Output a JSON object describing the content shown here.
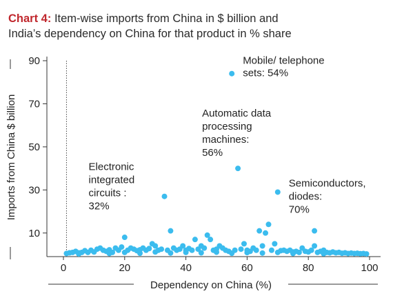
{
  "title_lead": "Chart 4:",
  "title_line1": "Item-wise imports from China in $ billion and",
  "title_line2": "India’s dependency on China for that product in % share",
  "colors": {
    "point": "#3bbcee",
    "title_lead": "#c0272d",
    "axis": "#333333"
  },
  "chart_data": {
    "type": "scatter",
    "title": "Item-wise imports from China in $ billion and India’s dependency on China for that product in % share",
    "xlabel": "Dependency on China (%)",
    "ylabel": "Imports from China $ billion",
    "xlim": [
      0,
      100
    ],
    "ylim": [
      0,
      90
    ],
    "x_ticks": [
      "0",
      "20",
      "40",
      "60",
      "80",
      "100"
    ],
    "y_ticks": [
      "10",
      "30",
      "50",
      "70",
      "90"
    ],
    "reference_line_x": 1,
    "grid": false,
    "annotations": [
      {
        "lines": [
          "Mobile/ telephone",
          "sets: 54%"
        ],
        "x": 55,
        "y": 84
      },
      {
        "lines": [
          "Automatic data",
          "processing",
          "machines:",
          "56%"
        ],
        "x": 57,
        "y": 40
      },
      {
        "lines": [
          "Electronic",
          "integrated",
          "circuits :",
          "32%"
        ],
        "x": 33,
        "y": 27
      },
      {
        "lines": [
          "Semiconductors,",
          "diodes:",
          "70%"
        ],
        "x": 70,
        "y": 29
      }
    ],
    "points": [
      [
        55,
        84
      ],
      [
        57,
        40
      ],
      [
        33,
        27
      ],
      [
        70,
        29
      ],
      [
        20,
        8
      ],
      [
        35,
        11
      ],
      [
        47,
        9
      ],
      [
        48,
        7
      ],
      [
        43,
        7
      ],
      [
        59,
        5
      ],
      [
        64,
        11
      ],
      [
        66,
        10
      ],
      [
        67,
        14
      ],
      [
        69,
        5
      ],
      [
        82,
        11
      ],
      [
        82,
        4
      ],
      [
        29,
        5
      ],
      [
        30,
        4
      ],
      [
        39,
        4
      ],
      [
        45,
        4
      ],
      [
        51,
        4
      ],
      [
        52,
        3
      ],
      [
        62,
        3
      ],
      [
        65,
        4
      ],
      [
        72,
        2
      ],
      [
        78,
        3
      ],
      [
        85,
        2
      ],
      [
        1,
        0.5
      ],
      [
        2,
        0.8
      ],
      [
        3,
        1
      ],
      [
        4,
        1.5
      ],
      [
        5,
        0.8
      ],
      [
        6,
        1
      ],
      [
        7,
        1.8
      ],
      [
        8,
        1
      ],
      [
        9,
        2
      ],
      [
        10,
        1.2
      ],
      [
        11,
        2.5
      ],
      [
        12,
        3
      ],
      [
        13,
        2
      ],
      [
        14,
        1.5
      ],
      [
        15,
        2.2
      ],
      [
        16,
        1
      ],
      [
        17,
        3
      ],
      [
        18,
        2
      ],
      [
        19,
        3.5
      ],
      [
        21,
        2
      ],
      [
        22,
        3
      ],
      [
        23,
        2.5
      ],
      [
        24,
        1.8
      ],
      [
        25,
        2.2
      ],
      [
        26,
        3
      ],
      [
        27,
        2
      ],
      [
        28,
        2.8
      ],
      [
        31,
        2
      ],
      [
        32,
        2.5
      ],
      [
        34,
        2
      ],
      [
        36,
        3
      ],
      [
        37,
        2
      ],
      [
        38,
        2.5
      ],
      [
        40,
        2
      ],
      [
        41,
        2.8
      ],
      [
        42,
        2
      ],
      [
        44,
        2.5
      ],
      [
        46,
        3
      ],
      [
        49,
        2
      ],
      [
        50,
        2.5
      ],
      [
        53,
        2
      ],
      [
        54,
        1.5
      ],
      [
        56,
        2
      ],
      [
        58,
        2.5
      ],
      [
        60,
        2
      ],
      [
        61,
        1.5
      ],
      [
        63,
        2
      ],
      [
        68,
        2
      ],
      [
        71,
        1.8
      ],
      [
        73,
        1.5
      ],
      [
        74,
        2
      ],
      [
        75,
        1.2
      ],
      [
        76,
        1.5
      ],
      [
        77,
        1
      ],
      [
        79,
        1.5
      ],
      [
        80,
        1.2
      ],
      [
        81,
        2
      ],
      [
        83,
        1
      ],
      [
        84,
        1.5
      ],
      [
        86,
        1
      ],
      [
        87,
        0.8
      ],
      [
        88,
        1.2
      ],
      [
        89,
        0.8
      ],
      [
        90,
        1
      ],
      [
        91,
        0.6
      ],
      [
        92,
        0.8
      ],
      [
        93,
        0.5
      ],
      [
        94,
        0.7
      ],
      [
        95,
        0.5
      ],
      [
        96,
        0.6
      ],
      [
        97,
        0.4
      ],
      [
        98,
        0.5
      ],
      [
        99,
        0.3
      ],
      [
        5,
        0.3
      ],
      [
        15,
        0.5
      ],
      [
        25,
        0.6
      ],
      [
        35,
        0.7
      ],
      [
        45,
        0.8
      ],
      [
        55,
        0.6
      ],
      [
        65,
        0.7
      ],
      [
        75,
        0.5
      ],
      [
        85,
        0.4
      ],
      [
        20,
        1
      ],
      [
        30,
        1.2
      ],
      [
        40,
        1
      ],
      [
        50,
        1.1
      ],
      [
        60,
        0.9
      ],
      [
        70,
        1
      ]
    ]
  }
}
